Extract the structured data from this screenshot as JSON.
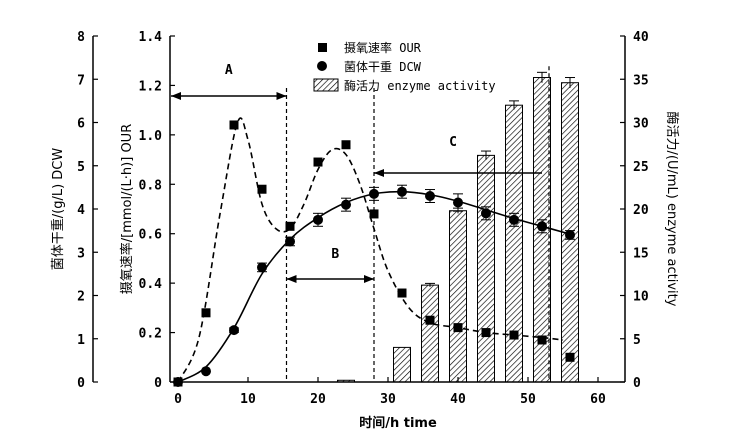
{
  "chart_data": {
    "type": "bar+line+scatter",
    "xlabel": "时间/h time",
    "x_ticks": [
      "0",
      "10",
      "20",
      "30",
      "40",
      "50",
      "60"
    ],
    "xlim": [
      -2,
      62
    ],
    "axes": {
      "dcw": {
        "label": "菌体干重/(g/L) DCW",
        "ylim": [
          0,
          8
        ],
        "ticks": [
          "0",
          "1",
          "2",
          "3",
          "4",
          "5",
          "6",
          "7",
          "8"
        ]
      },
      "our": {
        "label": "摄氧速率/[mmol/(L·h)] OUR",
        "ylim": [
          0,
          1.4
        ],
        "ticks": [
          "0",
          "0.2",
          "0.4",
          "0.6",
          "0.8",
          "1.0",
          "1.2",
          "1.4"
        ]
      },
      "activity": {
        "label": "酶活力/(U/mL) enzyme activity",
        "ylim": [
          0,
          40
        ],
        "ticks": [
          "0",
          "5",
          "10",
          "15",
          "20",
          "25",
          "30",
          "35",
          "40"
        ]
      }
    },
    "series": [
      {
        "name": "摄氧速率 OUR",
        "axis": "our",
        "marker": "square",
        "x": [
          0,
          4,
          8,
          12,
          16,
          20,
          24,
          28,
          32,
          36,
          40,
          44,
          48,
          52,
          56
        ],
        "y": [
          0.0,
          0.28,
          1.04,
          0.78,
          0.63,
          0.89,
          0.96,
          0.68,
          0.36,
          0.25,
          0.22,
          0.2,
          0.19,
          0.17,
          0.1
        ]
      },
      {
        "name": "菌体干重 DCW",
        "axis": "dcw",
        "marker": "circle",
        "x": [
          0,
          4,
          8,
          12,
          16,
          20,
          24,
          28,
          32,
          36,
          40,
          44,
          48,
          52,
          56
        ],
        "y": [
          0.0,
          0.25,
          1.2,
          2.65,
          3.25,
          3.75,
          4.1,
          4.35,
          4.4,
          4.3,
          4.15,
          3.9,
          3.75,
          3.6,
          3.4
        ],
        "err": [
          0,
          0,
          0.05,
          0.1,
          0.1,
          0.15,
          0.15,
          0.15,
          0.15,
          0.15,
          0.2,
          0.15,
          0.15,
          0.15,
          0.1
        ]
      },
      {
        "name": "酶活力 enzyme activity",
        "axis": "activity",
        "marker": "hatched-bar",
        "x": [
          24,
          32,
          36,
          40,
          44,
          48,
          52,
          56
        ],
        "y": [
          0.2,
          4.0,
          11.2,
          19.8,
          26.2,
          32.0,
          35.2,
          34.6
        ],
        "err": [
          0,
          0,
          0.2,
          0.3,
          0.5,
          0.5,
          0.6,
          0.6
        ]
      }
    ],
    "annotations": [
      {
        "label": "A",
        "x_from": -1,
        "x_to": 15.5,
        "note": "growth phase arrow"
      },
      {
        "label": "B",
        "x_from": 15.5,
        "x_to": 28,
        "note": "transition phase arrow"
      },
      {
        "label": "C",
        "x_from": 28,
        "x_to": 52,
        "note": "production phase arrow"
      }
    ],
    "phase_lines_x": [
      15.5,
      28,
      53
    ]
  }
}
